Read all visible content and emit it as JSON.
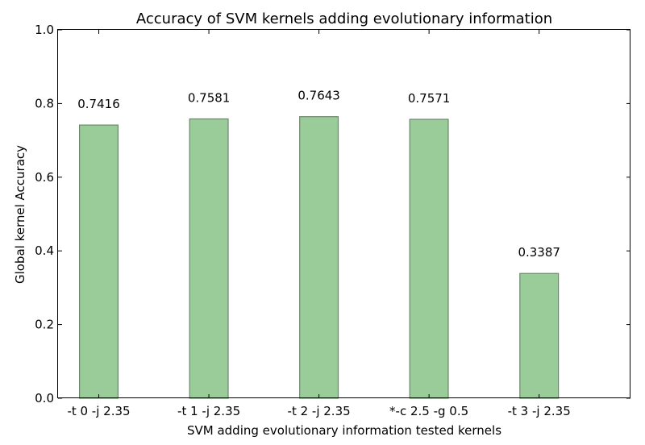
{
  "chart_data": {
    "type": "bar",
    "title": "Accuracy of SVM kernels adding evolutionary information",
    "xlabel": "SVM adding evolutionary information tested kernels",
    "ylabel": "Global kernel Accuracy",
    "categories": [
      "-t 0 -j 2.35",
      "-t 1 -j 2.35",
      "-t 2 -j 2.35",
      "*-c 2.5 -g 0.5",
      "-t 3 -j 2.35"
    ],
    "values": [
      0.7416,
      0.7581,
      0.7643,
      0.7571,
      0.3387
    ],
    "value_labels": [
      "0.7416",
      "0.7581",
      "0.7643",
      "0.7571",
      "0.3387"
    ],
    "ylim": [
      0,
      1.0
    ],
    "yticks": [
      "0.0",
      "0.2",
      "0.4",
      "0.6",
      "0.8",
      "1.0"
    ],
    "grid": false,
    "colors": {
      "bar_fill": "#99cc99",
      "bar_edge": "#6b876b"
    }
  }
}
